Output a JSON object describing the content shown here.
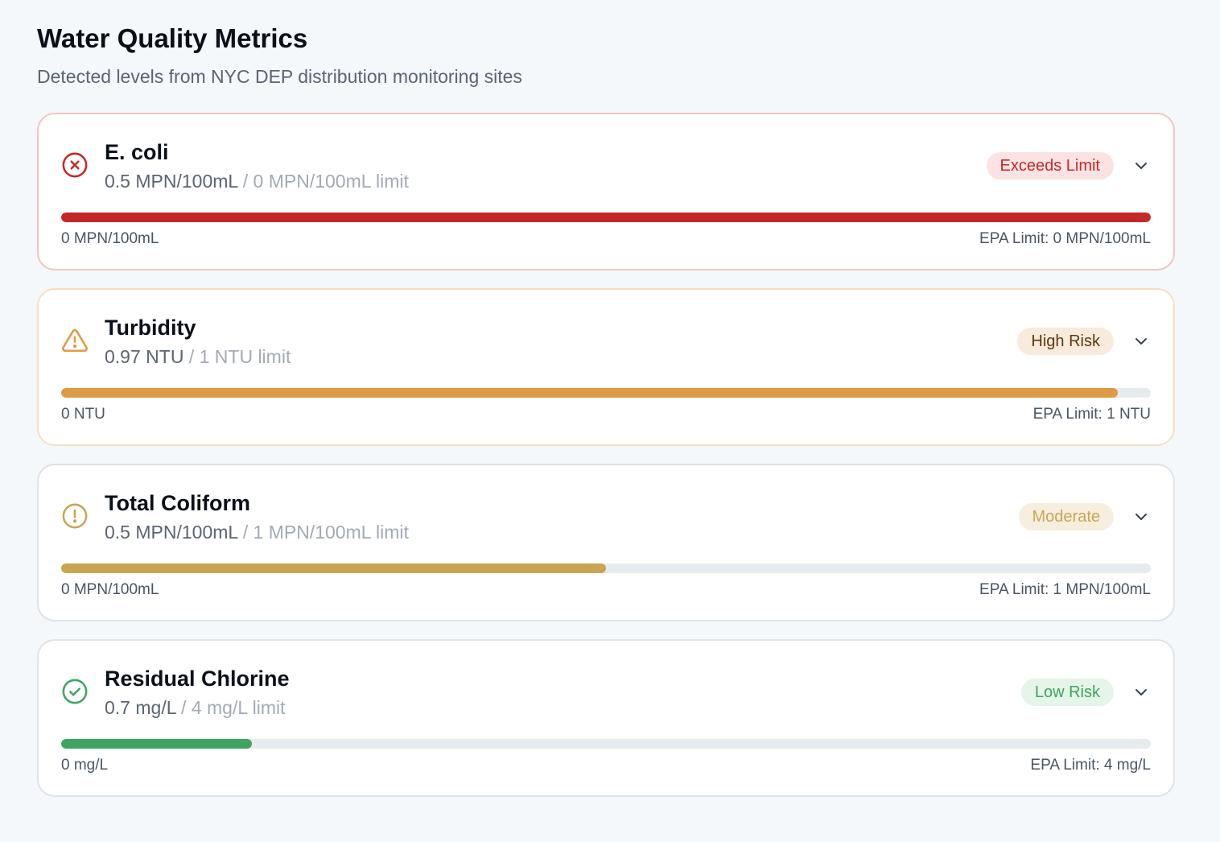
{
  "header": {
    "title": "Water Quality Metrics",
    "subtitle": "Detected levels from NYC DEP distribution monitoring sites"
  },
  "metrics": [
    {
      "name": "E. coli",
      "value": "0.5 MPN/100mL",
      "limit_text": "/ 0 MPN/100mL limit",
      "status": "Exceeds Limit",
      "icon": "x-circle-icon",
      "level_fraction": 1.0,
      "scale_min": "0 MPN/100mL",
      "scale_max": "EPA Limit: 0 MPN/100mL",
      "colors": {
        "accent": "#c62828",
        "badge_bg": "#fbe3e3",
        "badge_text": "#c62828",
        "border": "#f1c4c4"
      }
    },
    {
      "name": "Turbidity",
      "value": "0.97 NTU",
      "limit_text": "/ 1 NTU limit",
      "status": "High Risk",
      "icon": "warning-triangle-icon",
      "level_fraction": 0.97,
      "scale_min": "0 NTU",
      "scale_max": "EPA Limit: 1 NTU",
      "colors": {
        "accent": "#dd9b45",
        "badge_bg": "#f8ebdb",
        "badge_text": "#5a3a12",
        "border": "#f6dfc2"
      }
    },
    {
      "name": "Total Coliform",
      "value": "0.5 MPN/100mL",
      "limit_text": "/ 1 MPN/100mL limit",
      "status": "Moderate",
      "icon": "alert-circle-icon",
      "level_fraction": 0.5,
      "scale_min": "0 MPN/100mL",
      "scale_max": "EPA Limit: 1 MPN/100mL",
      "colors": {
        "accent": "#c9a553",
        "badge_bg": "#f6efdf",
        "badge_text": "#c9a553",
        "border": "#dde3e8"
      }
    },
    {
      "name": "Residual Chlorine",
      "value": "0.7 mg/L",
      "limit_text": "/ 4 mg/L limit",
      "status": "Low Risk",
      "icon": "check-circle-icon",
      "level_fraction": 0.175,
      "scale_min": "0 mg/L",
      "scale_max": "EPA Limit: 4 mg/L",
      "colors": {
        "accent": "#3ea561",
        "badge_bg": "#e6f4ea",
        "badge_text": "#3ea561",
        "border": "#dde3e8"
      }
    }
  ],
  "icons": {
    "expand": "chevron-down-icon"
  }
}
